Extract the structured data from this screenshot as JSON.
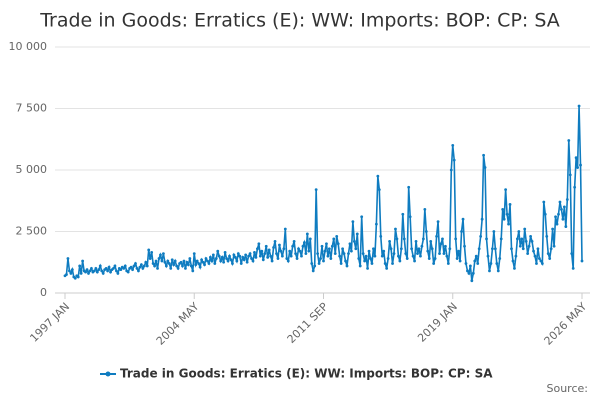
{
  "chart_data": {
    "type": "line",
    "title": "Trade in Goods: Erratics (E): WW: Imports: BOP: CP: SA",
    "source": "Source:",
    "categories": [
      "1997 JAN",
      null,
      null,
      null,
      null,
      null,
      null,
      null,
      null,
      null,
      null,
      null,
      null,
      null,
      null,
      null,
      null,
      null,
      null,
      null,
      null,
      null,
      null,
      null,
      null,
      null,
      null,
      null,
      null,
      null,
      null,
      null,
      null,
      null,
      null,
      null,
      null,
      null,
      null,
      null,
      null,
      null,
      null,
      null,
      null,
      null,
      null,
      null,
      null,
      null,
      null,
      null,
      null,
      null,
      null,
      null,
      null,
      null,
      null,
      null,
      null,
      null,
      null,
      null,
      null,
      null,
      null,
      null,
      null,
      null,
      null,
      null,
      null,
      null,
      null,
      null,
      null,
      null,
      null,
      null,
      null,
      null,
      null,
      null,
      null,
      null,
      null,
      null,
      "2004 MAY",
      null,
      null,
      null,
      null,
      null,
      null,
      null,
      null,
      null,
      null,
      null,
      null,
      null,
      null,
      null,
      null,
      null,
      null,
      null,
      null,
      null,
      null,
      null,
      null,
      null,
      null,
      null,
      null,
      null,
      null,
      null,
      null,
      null,
      null,
      null,
      null,
      null,
      null,
      null,
      null,
      null,
      null,
      null,
      null,
      null,
      null,
      null,
      null,
      null,
      null,
      null,
      null,
      null,
      null,
      null,
      null,
      null,
      null,
      null,
      null,
      null,
      null,
      null,
      null,
      null,
      null,
      null,
      null,
      null,
      null,
      null,
      null,
      null,
      null,
      null,
      null,
      null,
      null,
      null,
      null,
      null,
      null,
      null,
      null,
      null,
      null,
      null,
      "2011 SEP",
      null,
      null,
      null,
      null,
      null,
      null,
      null,
      null,
      null,
      null,
      null,
      null,
      null,
      null,
      null,
      null,
      null,
      null,
      null,
      null,
      null,
      null,
      null,
      null,
      null,
      null,
      null,
      null,
      null,
      null,
      null,
      null,
      null,
      null,
      null,
      null,
      null,
      null,
      null,
      null,
      null,
      null,
      null,
      null,
      null,
      null,
      null,
      null,
      null,
      null,
      null,
      null,
      null,
      null,
      null,
      null,
      null,
      null,
      null,
      null,
      null,
      null,
      null,
      null,
      null,
      null,
      null,
      null,
      null,
      null,
      null,
      null,
      null,
      null,
      null,
      null,
      null,
      null,
      null,
      null,
      null,
      null,
      null,
      null,
      null,
      null,
      null,
      "2019 JAN",
      null,
      null,
      null,
      null,
      null,
      null,
      null,
      null,
      null,
      null,
      null,
      null,
      null,
      null,
      null,
      null,
      null,
      null,
      null,
      null,
      null,
      null,
      null,
      null,
      null,
      null,
      null,
      null,
      null,
      null,
      null,
      null,
      null,
      null,
      null,
      null,
      null,
      null,
      null,
      null,
      null,
      null,
      null,
      null,
      null,
      null,
      null,
      null,
      null,
      null,
      null,
      null,
      null,
      null,
      null,
      null,
      null,
      null,
      null,
      null,
      null,
      null,
      null,
      null,
      null,
      null,
      null,
      null,
      null,
      null,
      null,
      null,
      null,
      null,
      null,
      null,
      null,
      null,
      null,
      null,
      null,
      null,
      null,
      null,
      null,
      null,
      null,
      "2026 MAY"
    ],
    "series": [
      {
        "name": "Trade in Goods: Erratics (E): WW: Imports: BOP: CP: SA",
        "color": "#0f7cc0",
        "values": [
          700,
          750,
          1400,
          900,
          800,
          950,
          650,
          600,
          700,
          650,
          1100,
          800,
          1300,
          900,
          850,
          950,
          800,
          900,
          1000,
          850,
          900,
          1000,
          850,
          950,
          1100,
          900,
          800,
          950,
          1000,
          900,
          1050,
          850,
          950,
          1000,
          1100,
          900,
          800,
          1000,
          950,
          1050,
          1000,
          1100,
          900,
          850,
          1000,
          1050,
          950,
          1100,
          1200,
          1000,
          900,
          1050,
          1150,
          1000,
          1100,
          1250,
          1100,
          1750,
          1400,
          1650,
          1200,
          1100,
          1300,
          1000,
          1400,
          1550,
          1300,
          1600,
          1250,
          1100,
          1300,
          1200,
          1000,
          1350,
          1150,
          1300,
          1100,
          1000,
          1200,
          1250,
          1100,
          1300,
          1000,
          1250,
          1150,
          1400,
          1100,
          900,
          1600,
          1150,
          1300,
          1200,
          1050,
          1350,
          1250,
          1150,
          1400,
          1300,
          1200,
          1450,
          1300,
          1550,
          1200,
          1400,
          1700,
          1500,
          1300,
          1450,
          1250,
          1650,
          1400,
          1300,
          1500,
          1350,
          1200,
          1550,
          1450,
          1300,
          1600,
          1500,
          1200,
          1450,
          1350,
          1550,
          1250,
          1500,
          1600,
          1400,
          1300,
          1650,
          1450,
          1800,
          2000,
          1500,
          1700,
          1350,
          1600,
          1900,
          1450,
          1750,
          1500,
          1300,
          1850,
          2100,
          1600,
          1400,
          1950,
          1700,
          1500,
          1800,
          2600,
          1400,
          1300,
          1700,
          1500,
          1900,
          2100,
          1600,
          1400,
          1800,
          1700,
          1500,
          1900,
          2050,
          1600,
          2400,
          1700,
          2200,
          1200,
          900,
          1100,
          4200,
          1600,
          1200,
          1400,
          1900,
          1300,
          1700,
          2000,
          1500,
          1800,
          1400,
          1900,
          2200,
          1600,
          2300,
          2000,
          1500,
          1200,
          1800,
          1600,
          1300,
          1100,
          1600,
          2000,
          1700,
          2900,
          2100,
          1800,
          2400,
          1400,
          1100,
          3100,
          1600,
          1300,
          1500,
          1000,
          1700,
          1400,
          1200,
          1800,
          1500,
          2800,
          4750,
          4200,
          2300,
          1500,
          1700,
          1200,
          1000,
          1400,
          2100,
          1800,
          1200,
          1600,
          2600,
          2200,
          1500,
          1300,
          1800,
          3200,
          2200,
          1600,
          1400,
          4300,
          3100,
          1800,
          1500,
          1300,
          2100,
          1600,
          1800,
          1500,
          1900,
          2200,
          3400,
          2500,
          1700,
          1400,
          2100,
          1800,
          1200,
          1400,
          2300,
          2900,
          1600,
          2000,
          2200,
          1600,
          1900,
          1500,
          1200,
          1800,
          5000,
          6000,
          5400,
          2200,
          1400,
          1700,
          1300,
          2500,
          3000,
          1900,
          1200,
          900,
          800,
          1100,
          500,
          800,
          1300,
          1500,
          1200,
          1800,
          2300,
          3000,
          5600,
          5100,
          2200,
          1500,
          900,
          1200,
          1800,
          2500,
          1800,
          1200,
          900,
          1400,
          2200,
          3400,
          3000,
          4200,
          3200,
          2800,
          3600,
          1800,
          1300,
          1000,
          1500,
          2200,
          2500,
          1900,
          2200,
          1800,
          2600,
          2100,
          1600,
          1900,
          2300,
          2100,
          1700,
          1500,
          1200,
          1800,
          1400,
          1300,
          1200,
          3700,
          3200,
          2300,
          1600,
          1400,
          1800,
          2600,
          1900,
          3100,
          2800,
          3200,
          3700,
          3400,
          3000,
          3500,
          2700,
          3800,
          6200,
          4800,
          1600,
          1000,
          4300,
          5500,
          5100,
          7600,
          5200,
          1300
        ]
      }
    ],
    "ylim": [
      0,
      10000
    ],
    "yticks": [
      0,
      {
        "value": 2500,
        "label": "2 500"
      },
      {
        "value": 5000,
        "label": "5 000"
      },
      {
        "value": 7500,
        "label": "7 500"
      },
      {
        "value": 10000,
        "label": "10 000"
      }
    ],
    "grid": true
  }
}
